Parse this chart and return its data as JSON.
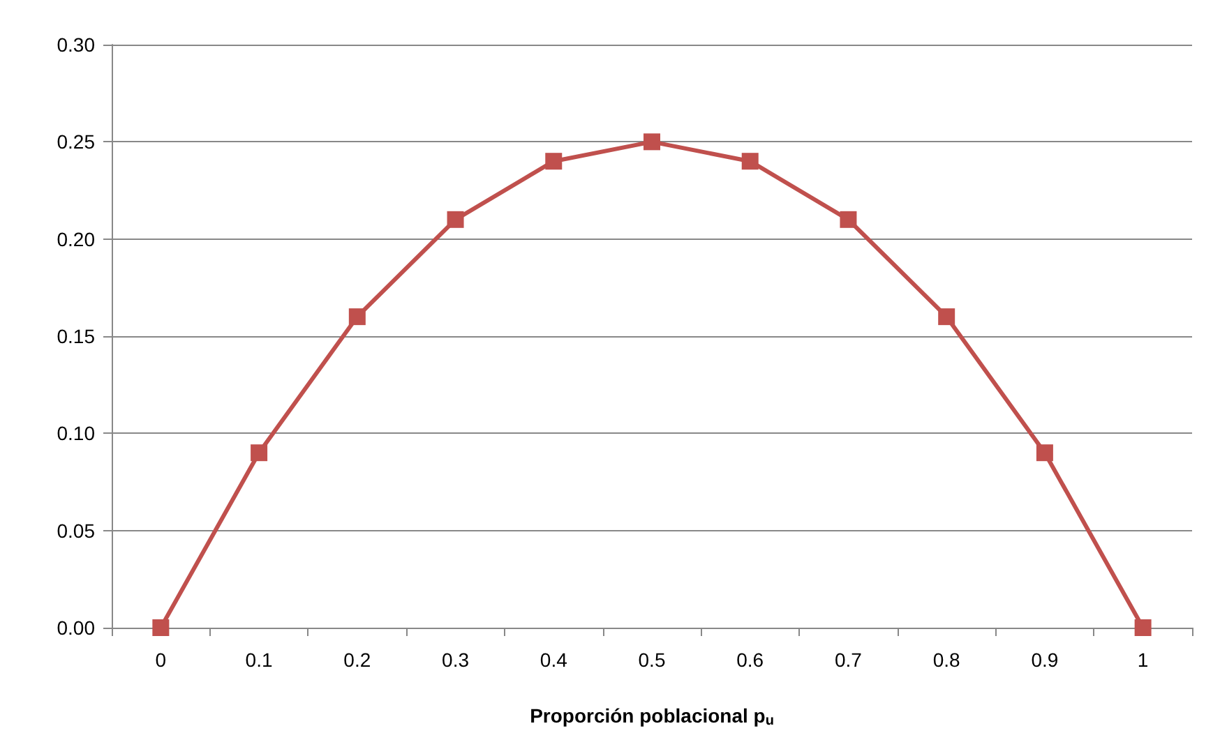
{
  "chart_data": {
    "type": "line",
    "xlabel": "Proporción poblacional p$_{u}$",
    "categories": [
      "0",
      "0.1",
      "0.2",
      "0.3",
      "0.4",
      "0.5",
      "0.6",
      "0.7",
      "0.8",
      "0.9",
      "1"
    ],
    "series": [
      {
        "color": "#c0504d",
        "values": [
          0,
          0.09,
          0.16,
          0.21,
          0.24,
          0.25,
          0.24,
          0.21,
          0.16,
          0.09,
          0
        ]
      }
    ],
    "ylim": [
      0,
      0.3
    ],
    "yticks": [
      {
        "value": 0,
        "label": "0.00"
      },
      {
        "value": 0.05,
        "label": "0.05"
      },
      {
        "value": 0.1,
        "label": "0.10"
      },
      {
        "value": 0.15,
        "label": "0.15"
      },
      {
        "value": 0.2,
        "label": "0.20"
      },
      {
        "value": 0.25,
        "label": "0.25"
      },
      {
        "value": 0.3,
        "label": "0.30"
      }
    ],
    "grid": "y",
    "marker": "square",
    "line_style": "solid"
  }
}
